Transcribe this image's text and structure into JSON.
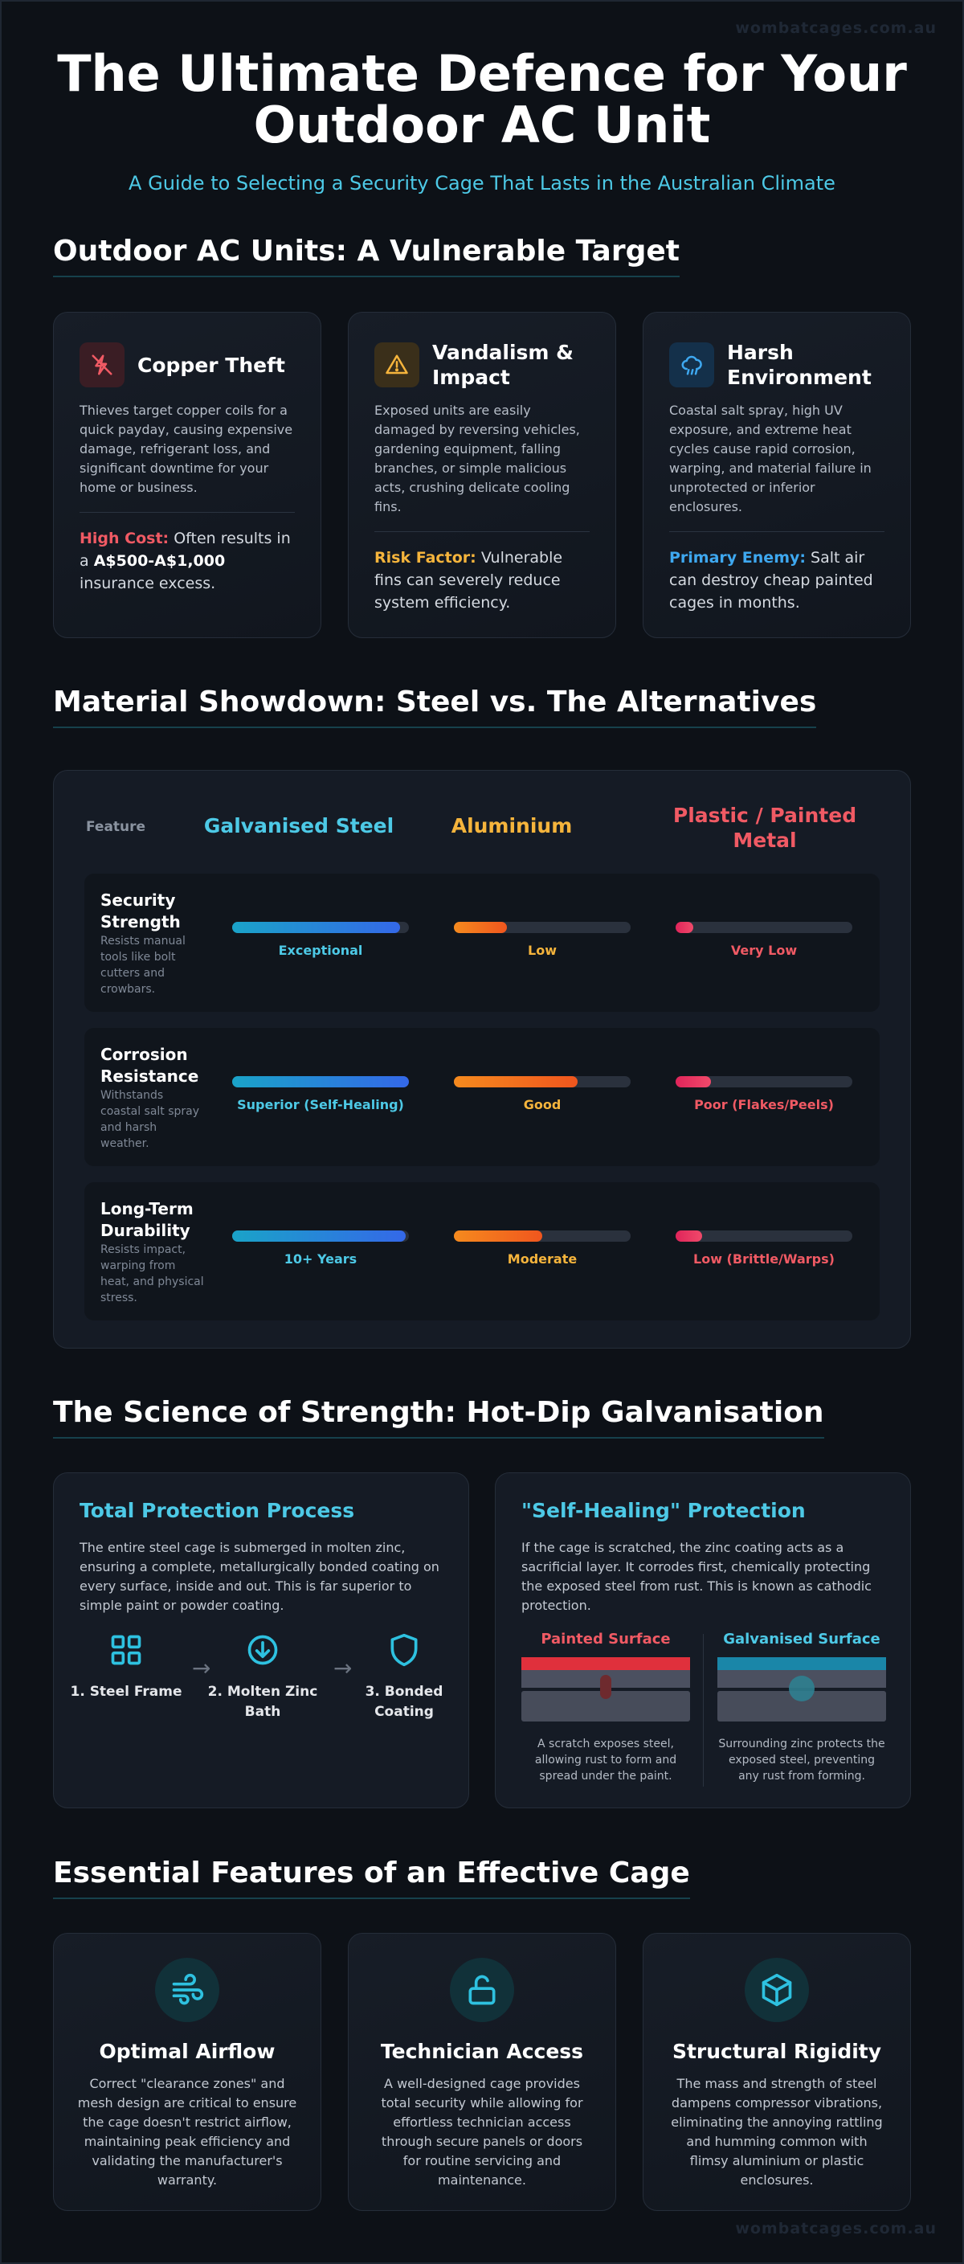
{
  "watermark": "wombatcages.com.au",
  "hero": {
    "title_line1": "The Ultimate Defence for Your",
    "title_line2": "Outdoor AC Unit",
    "subtitle": "A Guide to Selecting a Security Cage That Lasts in the Australian Climate"
  },
  "threats": {
    "title": "Outdoor AC Units: A Vulnerable Target",
    "cards": [
      {
        "icon": "cut-wire-icon",
        "title": "Copper Theft",
        "desc": "Thieves target copper coils for a quick payday, causing expensive damage, refrigerant loss, and significant downtime for your home or business.",
        "note_label": "High Cost:",
        "note_pre": "Often results in a",
        "note_bold": "A$500-A$1,000",
        "note_post": "insurance excess.",
        "accent": "#f05a64"
      },
      {
        "icon": "warning-triangle-icon",
        "title": "Vandalism & Impact",
        "desc": "Exposed units are easily damaged by reversing vehicles, gardening equipment, falling branches, or simple malicious acts, crushing delicate cooling fins.",
        "note_label": "Risk Factor:",
        "note_text": "Vulnerable fins can severely reduce system efficiency.",
        "accent": "#f5b43c"
      },
      {
        "icon": "storm-cloud-icon",
        "title": "Harsh Environment",
        "desc": "Coastal salt spray, high UV exposure, and extreme heat cycles cause rapid corrosion, warping, and material failure in unprotected or inferior enclosures.",
        "note_label": "Primary Enemy:",
        "note_text": "Salt air can destroy cheap painted cages in months.",
        "accent": "#3ea8f0"
      }
    ]
  },
  "materials": {
    "title": "Material Showdown: Steel vs. The Alternatives",
    "feature_header": "Feature",
    "columns": [
      "Galvanised Steel",
      "Aluminium",
      "Plastic / Painted Metal"
    ],
    "rows": [
      {
        "title": "Security Strength",
        "desc": "Resists manual tools like bolt cutters and crowbars.",
        "levels": [
          0.95,
          0.3,
          0.1
        ],
        "labels": [
          "Exceptional",
          "Low",
          "Very Low"
        ]
      },
      {
        "title": "Corrosion Resistance",
        "desc": "Withstands coastal salt spray and harsh weather.",
        "levels": [
          1.0,
          0.7,
          0.2
        ],
        "labels": [
          "Superior (Self-Healing)",
          "Good",
          "Poor (Flakes/Peels)"
        ]
      },
      {
        "title": "Long-Term Durability",
        "desc": "Resists impact, warping from heat, and physical stress.",
        "levels": [
          0.98,
          0.5,
          0.15
        ],
        "labels": [
          "10+ Years",
          "Moderate",
          "Low (Brittle/Warps)"
        ]
      }
    ]
  },
  "science": {
    "title": "The Science of Strength: Hot-Dip Galvanisation",
    "process": {
      "title": "Total Protection Process",
      "desc": "The entire steel cage is submerged in molten zinc, ensuring a complete, metallurgically bonded coating on every surface, inside and out. This is far superior to simple paint or powder coating.",
      "steps": [
        "1. Steel Frame",
        "2. Molten Zinc Bath",
        "3. Bonded Coating"
      ]
    },
    "healing": {
      "title": "\"Self-Healing\" Protection",
      "desc": "If the cage is scratched, the zinc coating acts as a sacrificial layer. It corrodes first, chemically protecting the exposed steel from rust. This is known as cathodic protection.",
      "painted_title": "Painted Surface",
      "painted_caption": "A scratch exposes steel, allowing rust to form and spread under the paint.",
      "galv_title": "Galvanised Surface",
      "galv_caption": "Surrounding zinc protects the exposed steel, preventing any rust from forming."
    }
  },
  "features": {
    "title": "Essential Features of an Effective Cage",
    "cards": [
      {
        "icon": "wind-icon",
        "title": "Optimal Airflow",
        "desc": "Correct \"clearance zones\" and mesh design are critical to ensure the cage doesn't restrict airflow, maintaining peak efficiency and validating the manufacturer's warranty."
      },
      {
        "icon": "unlocked-padlock-icon",
        "title": "Technician Access",
        "desc": "A well-designed cage provides total security while allowing for effortless technician access through secure panels or doors for routine servicing and maintenance."
      },
      {
        "icon": "cube-icon",
        "title": "Structural Rigidity",
        "desc": "The mass and strength of steel dampens compressor vibrations, eliminating the annoying rattling and humming common with flimsy aluminium or plastic enclosures."
      }
    ]
  },
  "colors": {
    "cyan": "#4dc9e6",
    "amber": "#f5b43c",
    "red": "#f05a64",
    "background": "#0d1117"
  }
}
